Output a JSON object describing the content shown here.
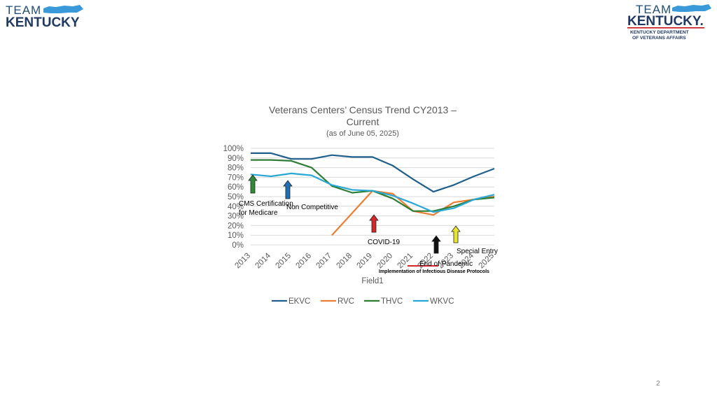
{
  "logos": {
    "left": {
      "line1": "TEAM",
      "line2": "KENTUCKY"
    },
    "right": {
      "line1": "TEAM",
      "line2": "KENTUCKY.",
      "line3": "KENTUCKY DEPARTMENT",
      "line4": "OF VETERANS AFFAIRS"
    }
  },
  "page_number": "2",
  "chart_data": {
    "type": "line",
    "title_line1": "Veterans Centers’ Census Trend CY2013 –",
    "title_line2": "Current",
    "subtitle": "(as of June 05, 2025)",
    "xlabel": "Field1",
    "ylabel": "",
    "x": [
      "2013",
      "2014",
      "2015",
      "2016",
      "2017",
      "2018",
      "2019",
      "2020",
      "2021",
      "2022",
      "2023",
      "2024",
      "2025"
    ],
    "ylim": [
      0,
      100
    ],
    "yticks": [
      "0%",
      "10%",
      "20%",
      "30%",
      "40%",
      "50%",
      "60%",
      "70%",
      "80%",
      "90%",
      "100%"
    ],
    "grid": true,
    "legend_position": "bottom",
    "series": [
      {
        "name": "EKVC",
        "color": "#1f5f8b",
        "values": [
          95,
          95,
          89,
          89,
          93,
          91,
          91,
          82,
          68,
          55,
          62,
          71,
          79
        ]
      },
      {
        "name": "RVC",
        "color": "#ed7d31",
        "values": [
          null,
          null,
          null,
          null,
          10,
          33,
          56,
          53,
          35,
          31,
          44,
          47,
          50
        ]
      },
      {
        "name": "THVC",
        "color": "#2e7d32",
        "values": [
          88,
          88,
          87,
          80,
          61,
          54,
          56,
          48,
          35,
          35,
          40,
          47,
          49
        ]
      },
      {
        "name": "WKVC",
        "color": "#29a8d8",
        "values": [
          73,
          71,
          74,
          72,
          62,
          57,
          56,
          51,
          43,
          34,
          38,
          47,
          52
        ]
      }
    ],
    "annotations": [
      {
        "label": "CMS Certification",
        "label2": "for Medicare",
        "arrow_color": "#2e8b3a",
        "year": "2013"
      },
      {
        "label": "Non Competitive",
        "arrow_color": "#1f6fb5",
        "year": "2015"
      },
      {
        "label": "COVID-19",
        "arrow_color": "#d62728",
        "year": "2019"
      },
      {
        "label": "End of Pandemic",
        "label2": "Implementation of Infectious Disease Protocols",
        "arrow_color": "#111111",
        "year": "2022"
      },
      {
        "label": "Special Entry",
        "arrow_color": "#e6e632",
        "year": "2023"
      }
    ]
  }
}
